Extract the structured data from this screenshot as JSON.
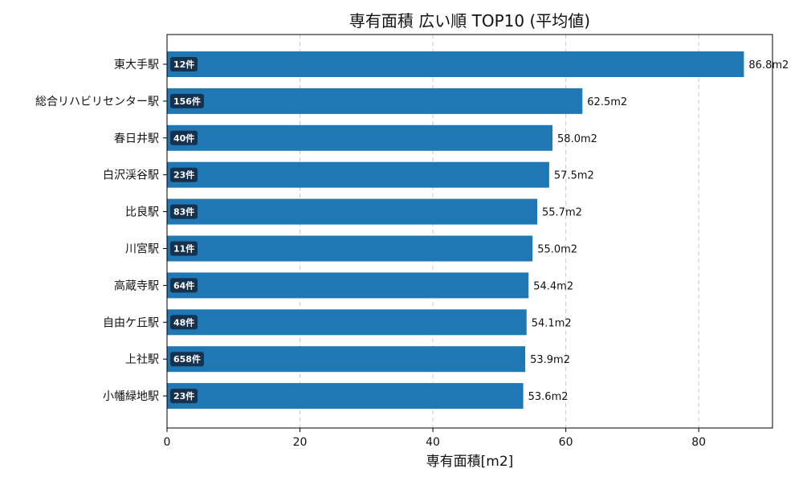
{
  "chart_data": {
    "type": "bar",
    "orientation": "horizontal",
    "title": "専有面積 広い順 TOP10 (平均値)",
    "xlabel": "専有面積[m2]",
    "ylabel": "",
    "xlim": [
      0,
      91.1
    ],
    "xticks": [
      0,
      20,
      40,
      60,
      80
    ],
    "grid": "vertical-dashed",
    "bar_color": "#1f77b4",
    "badge_color": "#16324f",
    "categories": [
      "東大手駅",
      "総合リハビリセンター駅",
      "春日井駅",
      "白沢渓谷駅",
      "比良駅",
      "川宮駅",
      "高蔵寺駅",
      "自由ケ丘駅",
      "上社駅",
      "小幡緑地駅"
    ],
    "values": [
      86.8,
      62.5,
      58.0,
      57.5,
      55.7,
      55.0,
      54.4,
      54.1,
      53.9,
      53.6
    ],
    "value_labels": [
      "86.8m2",
      "62.5m2",
      "58.0m2",
      "57.5m2",
      "55.7m2",
      "55.0m2",
      "54.4m2",
      "54.1m2",
      "53.9m2",
      "53.6m2"
    ],
    "counts": [
      "12件",
      "156件",
      "40件",
      "23件",
      "83件",
      "11件",
      "64件",
      "48件",
      "658件",
      "23件"
    ]
  }
}
